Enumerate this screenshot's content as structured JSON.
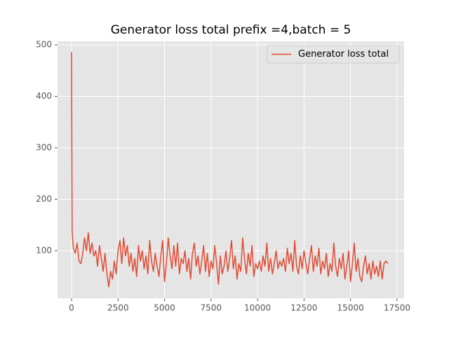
{
  "chart_data": {
    "type": "line",
    "title": "Generator loss total prefix =4,batch = 5",
    "x": [
      0,
      30,
      60,
      100,
      200,
      300,
      400,
      500,
      600,
      700,
      800,
      900,
      1000,
      1100,
      1200,
      1300,
      1400,
      1500,
      1600,
      1700,
      1800,
      1900,
      2000,
      2100,
      2200,
      2300,
      2400,
      2500,
      2600,
      2700,
      2800,
      2900,
      3000,
      3100,
      3200,
      3300,
      3400,
      3500,
      3600,
      3700,
      3800,
      3900,
      4000,
      4100,
      4200,
      4300,
      4400,
      4500,
      4600,
      4700,
      4800,
      4900,
      5000,
      5100,
      5200,
      5300,
      5400,
      5500,
      5600,
      5700,
      5800,
      5900,
      6000,
      6100,
      6200,
      6300,
      6400,
      6500,
      6600,
      6700,
      6800,
      6900,
      7000,
      7100,
      7200,
      7300,
      7400,
      7500,
      7600,
      7700,
      7800,
      7900,
      8000,
      8100,
      8200,
      8300,
      8400,
      8500,
      8600,
      8700,
      8800,
      8900,
      9000,
      9100,
      9200,
      9300,
      9400,
      9500,
      9600,
      9700,
      9800,
      9900,
      10000,
      10100,
      10200,
      10300,
      10400,
      10500,
      10600,
      10700,
      10800,
      10900,
      11000,
      11100,
      11200,
      11300,
      11400,
      11500,
      11600,
      11700,
      11800,
      11900,
      12000,
      12100,
      12200,
      12300,
      12400,
      12500,
      12600,
      12700,
      12800,
      12900,
      13000,
      13100,
      13200,
      13300,
      13400,
      13500,
      13600,
      13700,
      13800,
      13900,
      14000,
      14100,
      14200,
      14300,
      14400,
      14500,
      14600,
      14700,
      14800,
      14900,
      15000,
      15100,
      15200,
      15300,
      15400,
      15500,
      15600,
      15700,
      15800,
      15900,
      16000,
      16100,
      16200,
      16300,
      16400,
      16500,
      16600,
      16700,
      16800,
      16900,
      17000
    ],
    "series": [
      {
        "name": "Generator loss total",
        "color": "#E24A33",
        "values": [
          486,
          140,
          120,
          105,
          95,
          115,
          80,
          75,
          95,
          125,
          100,
          135,
          95,
          115,
          90,
          100,
          70,
          110,
          85,
          60,
          95,
          55,
          30,
          60,
          45,
          80,
          55,
          100,
          120,
          75,
          125,
          90,
          110,
          70,
          95,
          60,
          85,
          50,
          110,
          80,
          100,
          65,
          90,
          55,
          120,
          80,
          60,
          95,
          70,
          50,
          90,
          120,
          40,
          75,
          125,
          90,
          65,
          110,
          70,
          115,
          55,
          85,
          75,
          100,
          60,
          85,
          45,
          95,
          115,
          70,
          90,
          55,
          80,
          110,
          60,
          95,
          50,
          80,
          65,
          110,
          75,
          35,
          90,
          55,
          70,
          100,
          60,
          85,
          120,
          65,
          90,
          45,
          75,
          60,
          125,
          85,
          55,
          95,
          70,
          110,
          50,
          75,
          65,
          80,
          60,
          90,
          70,
          115,
          60,
          85,
          55,
          75,
          100,
          65,
          80,
          70,
          85,
          60,
          105,
          75,
          95,
          60,
          120,
          70,
          55,
          90,
          65,
          100,
          75,
          55,
          85,
          110,
          60,
          90,
          70,
          105,
          55,
          80,
          65,
          95,
          50,
          75,
          60,
          115,
          70,
          50,
          85,
          65,
          95,
          45,
          70,
          100,
          40,
          75,
          115,
          60,
          85,
          50,
          40,
          70,
          90,
          55,
          75,
          45,
          80,
          55,
          70,
          50,
          80,
          45,
          75,
          80,
          75
        ]
      }
    ],
    "xlim": [
      -754,
      17880
    ],
    "ylim": [
      7.5,
      506.8
    ],
    "xticks": [
      0,
      2500,
      5000,
      7500,
      10000,
      12500,
      15000,
      17500
    ],
    "yticks": [
      100,
      200,
      300,
      400,
      500
    ],
    "grid": true,
    "legend": "upper-right"
  }
}
